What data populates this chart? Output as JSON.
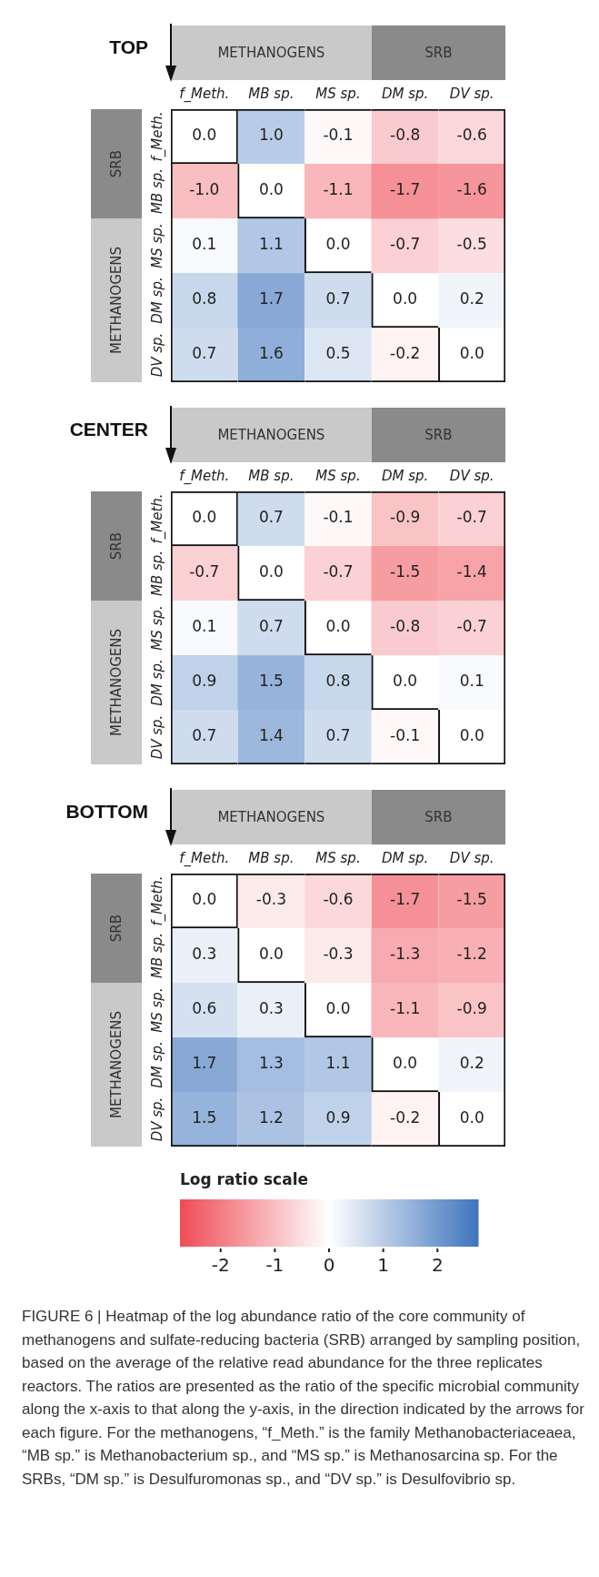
{
  "chart_data": [
    {
      "type": "heatmap",
      "title": "TOP",
      "categories": [
        "f_Meth.",
        "MB sp.",
        "MS sp.",
        "DM sp.",
        "DV sp."
      ],
      "y_categories": [
        "f_Meth.",
        "MB sp.",
        "MS sp.",
        "DM sp.",
        "DV sp."
      ],
      "cells": [
        [
          0.0,
          1.0,
          -0.1,
          -0.8,
          -0.6
        ],
        [
          -1.0,
          0.0,
          -1.1,
          -1.7,
          -1.6
        ],
        [
          0.1,
          1.1,
          0.0,
          -0.7,
          -0.5
        ],
        [
          0.8,
          1.7,
          0.7,
          0.0,
          0.2
        ],
        [
          0.7,
          1.6,
          0.5,
          -0.2,
          0.0
        ]
      ],
      "cell_labels": [
        [
          "0.0",
          "1.0",
          "-0.1",
          "-0.8",
          "-0.6"
        ],
        [
          "-1.0",
          "0.0",
          "-1.1",
          "-1.7",
          "-1.6"
        ],
        [
          "0.1",
          "1.1",
          "0.0",
          "-0.7",
          "-0.5"
        ],
        [
          "0.8",
          "1.7",
          "0.7",
          "0.0",
          "0.2"
        ],
        [
          "0.7",
          "1.6",
          "0.5",
          "-0.2",
          "0.0"
        ]
      ],
      "annotations": [
        "METHANOGENS",
        "SRB",
        "SRB",
        "METHANOGENS"
      ]
    },
    {
      "type": "heatmap",
      "title": "CENTER",
      "categories": [
        "f_Meth.",
        "MB sp.",
        "MS sp.",
        "DM sp.",
        "DV sp."
      ],
      "y_categories": [
        "f_Meth.",
        "MB sp.",
        "MS sp.",
        "DM sp.",
        "DV sp."
      ],
      "cells": [
        [
          0.0,
          0.7,
          -0.1,
          -0.9,
          -0.7
        ],
        [
          -0.7,
          0.0,
          -0.7,
          -1.5,
          -1.4
        ],
        [
          0.1,
          0.7,
          0.0,
          -0.8,
          -0.7
        ],
        [
          0.9,
          1.5,
          0.8,
          0.0,
          0.1
        ],
        [
          0.7,
          1.4,
          0.7,
          -0.1,
          0.0
        ]
      ],
      "cell_labels": [
        [
          "0.0",
          "0.7",
          "-0.1",
          "-0.9",
          "-0.7"
        ],
        [
          "-0.7",
          "0.0",
          "-0.7",
          "-1.5",
          "-1.4"
        ],
        [
          "0.1",
          "0.7",
          "0.0",
          "-0.8",
          "-0.7"
        ],
        [
          "0.9",
          "1.5",
          "0.8",
          "0.0",
          "0.1"
        ],
        [
          "0.7",
          "1.4",
          "0.7",
          "-0.1",
          "0.0"
        ]
      ],
      "annotations": [
        "METHANOGENS",
        "SRB",
        "SRB",
        "METHANOGENS"
      ]
    },
    {
      "type": "heatmap",
      "title": "BOTTOM",
      "categories": [
        "f_Meth.",
        "MB sp.",
        "MS sp.",
        "DM sp.",
        "DV sp."
      ],
      "y_categories": [
        "f_Meth.",
        "MB sp.",
        "MS sp.",
        "DM sp.",
        "DV sp."
      ],
      "cells": [
        [
          0.0,
          -0.3,
          -0.6,
          -1.7,
          -1.5
        ],
        [
          0.3,
          0.0,
          -0.3,
          -1.3,
          -1.2
        ],
        [
          0.6,
          0.3,
          0.0,
          -1.1,
          -0.9
        ],
        [
          1.7,
          1.3,
          1.1,
          0.0,
          0.2
        ],
        [
          1.5,
          1.2,
          0.9,
          -0.2,
          0.0
        ]
      ],
      "cell_labels": [
        [
          "0.0",
          "-0.3",
          "-0.6",
          "-1.7",
          "-1.5"
        ],
        [
          "0.3",
          "0.0",
          "-0.3",
          "-1.3",
          "-1.2"
        ],
        [
          "0.6",
          "0.3",
          "0.0",
          "-1.1",
          "-0.9"
        ],
        [
          "1.7",
          "1.3",
          "1.1",
          "0.0",
          "0.2"
        ],
        [
          "1.5",
          "1.2",
          "0.9",
          "-0.2",
          "0.0"
        ]
      ],
      "clim": [
        -2.75,
        2.75
      ],
      "cticks": [
        -2,
        -1,
        0,
        1,
        2
      ],
      "clabel": "Log ratio scale",
      "annotations": [
        "METHANOGENS",
        "SRB",
        "SRB",
        "METHANOGENS",
        "FIGURE 6 | Heatmap of the log abundance ratio of the core community of methanogens and sulfate-reducing bacteria (SRB) arranged by sampling position, based on the average of the relative read abundance for the three replicates reactors. The ratios are presented as the ratio of the specific microbial community along the x-axis to that along the y-axis, in the direction indicated by the arrows for each figure. For the methanogens, “f_Meth.” is the family Methanobacteriaceaea, “MB sp.” is Methanobacterium sp., and “MS sp.” is Methanosarcina sp. For the SRBs, “DM sp.” is Desulfuromonas sp., and “DV sp.” is Desulfovibrio sp."
      ]
    }
  ]
}
